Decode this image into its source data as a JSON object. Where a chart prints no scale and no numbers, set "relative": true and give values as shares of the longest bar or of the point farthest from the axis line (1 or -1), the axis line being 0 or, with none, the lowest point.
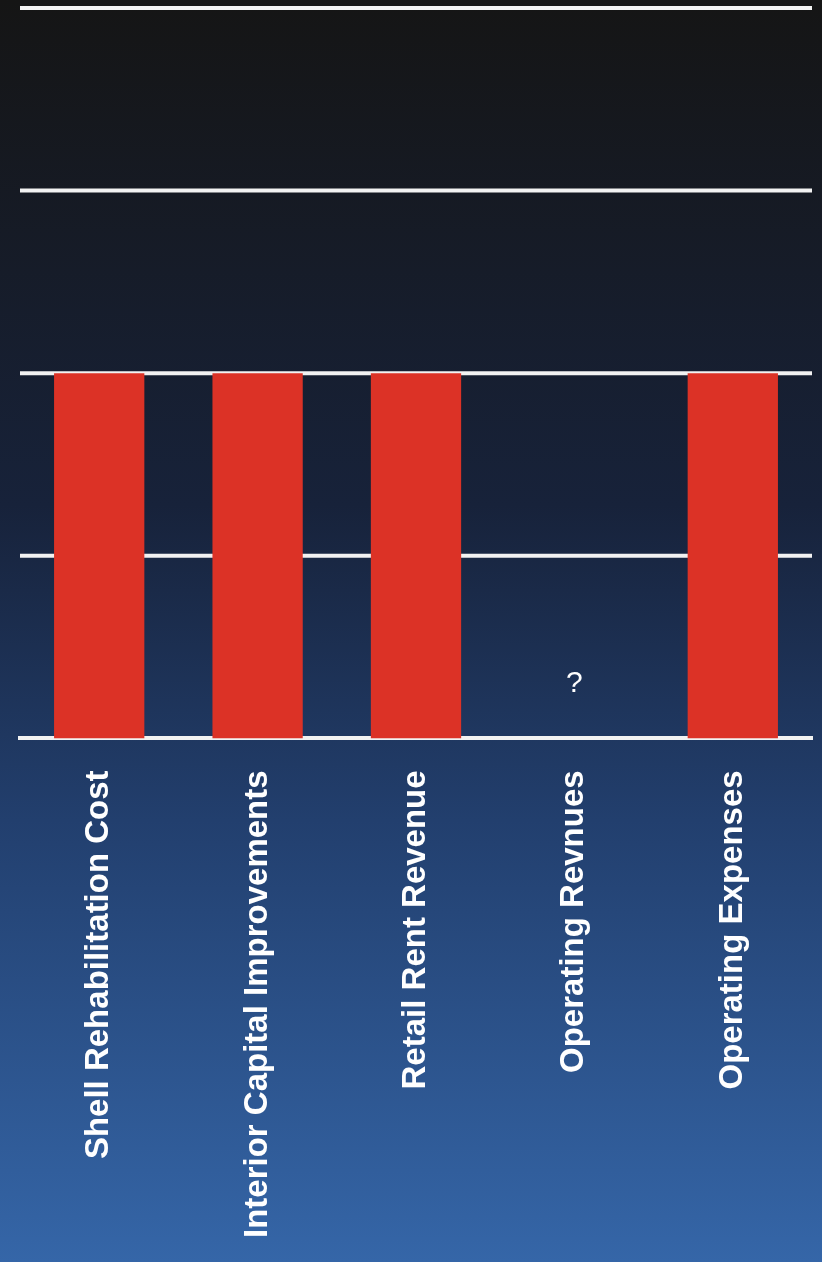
{
  "chart_data": {
    "type": "bar",
    "relative": true,
    "categories": [
      "Shell Rehabilitation Cost",
      "Interior Capital Improvements",
      "Retail Rent Revenue",
      "Operating Revnues",
      "Operating Expenses"
    ],
    "values": [
      1,
      1,
      1,
      null,
      1
    ],
    "color": "#dc3226",
    "ref_lines": [
      {
        "axis": "y",
        "value": 0.5,
        "color": "#f2f2f2"
      },
      {
        "axis": "y",
        "value": 1,
        "color": "#f2f2f2"
      },
      {
        "axis": "y",
        "value": 1.5,
        "color": "#f2f2f2"
      },
      {
        "axis": "y",
        "value": 2,
        "color": "#f2f2f2"
      }
    ],
    "annotations": [
      "?"
    ]
  }
}
